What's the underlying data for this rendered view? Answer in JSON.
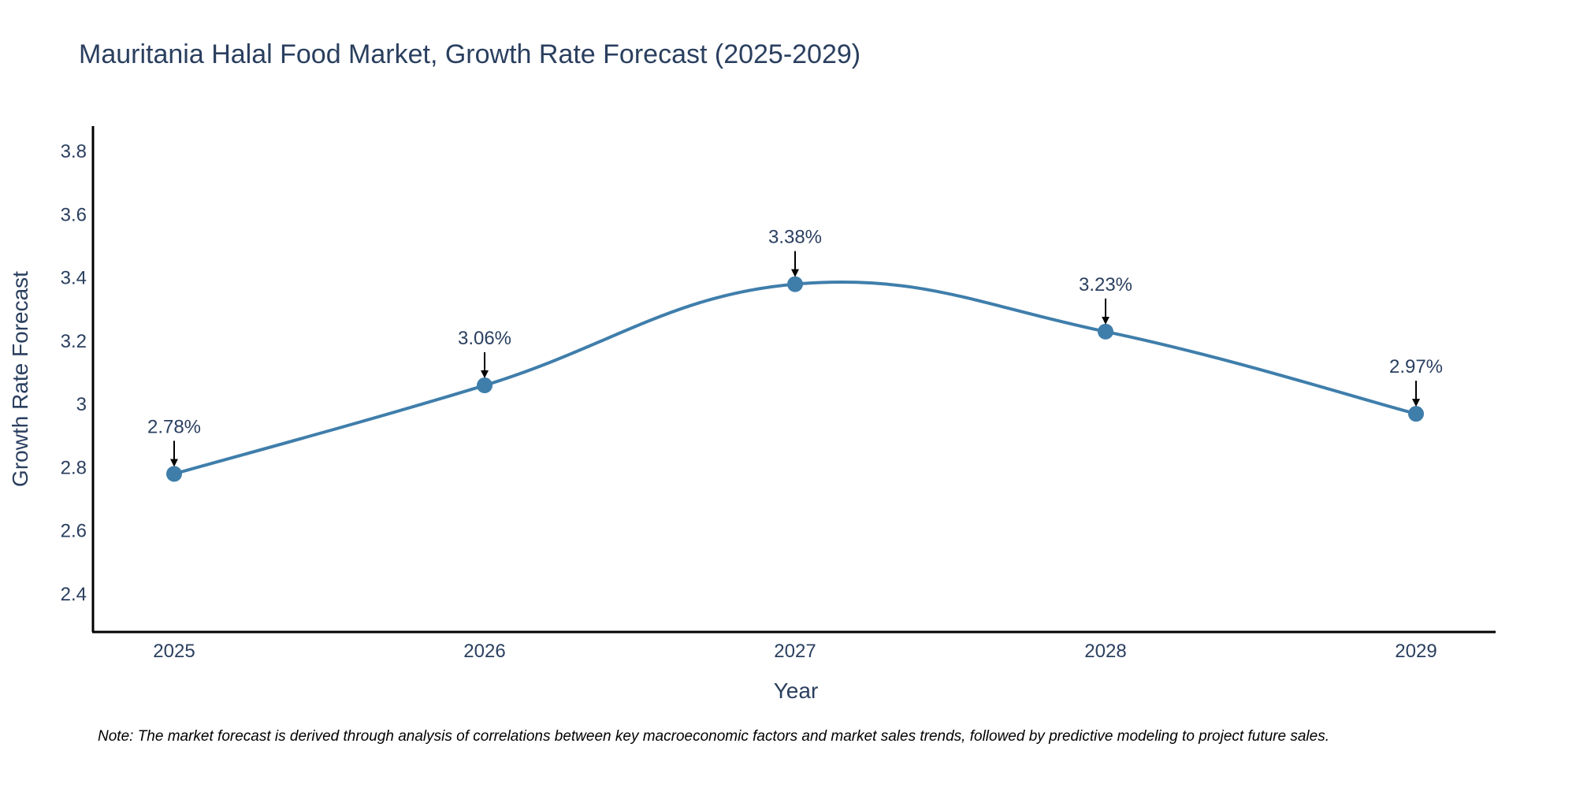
{
  "chart_data": {
    "type": "line",
    "title": "Mauritania Halal Food Market, Growth Rate Forecast (2025-2029)",
    "xlabel": "Year",
    "ylabel": "Growth Rate Forecast",
    "categories": [
      "2025",
      "2026",
      "2027",
      "2028",
      "2029"
    ],
    "series": [
      {
        "name": "Growth Rate Forecast",
        "values": [
          2.78,
          3.06,
          3.38,
          3.23,
          2.97
        ]
      }
    ],
    "data_labels": [
      "2.78%",
      "3.06%",
      "3.38%",
      "3.23%",
      "2.97%"
    ],
    "y_ticks": [
      2.4,
      2.6,
      2.8,
      3,
      3.2,
      3.4,
      3.6,
      3.8
    ],
    "y_tick_labels": [
      "2.4",
      "2.6",
      "2.8",
      "3",
      "3.2",
      "3.4",
      "3.6",
      "3.8"
    ],
    "ylim": [
      2.28,
      3.88
    ],
    "grid": false,
    "line_color": "#3f7eab",
    "marker_color": "#3f7eab",
    "note": "Note: The market forecast is derived through analysis of correlations between key macroeconomic factors and market sales trends, followed by predictive modeling to project future sales."
  }
}
